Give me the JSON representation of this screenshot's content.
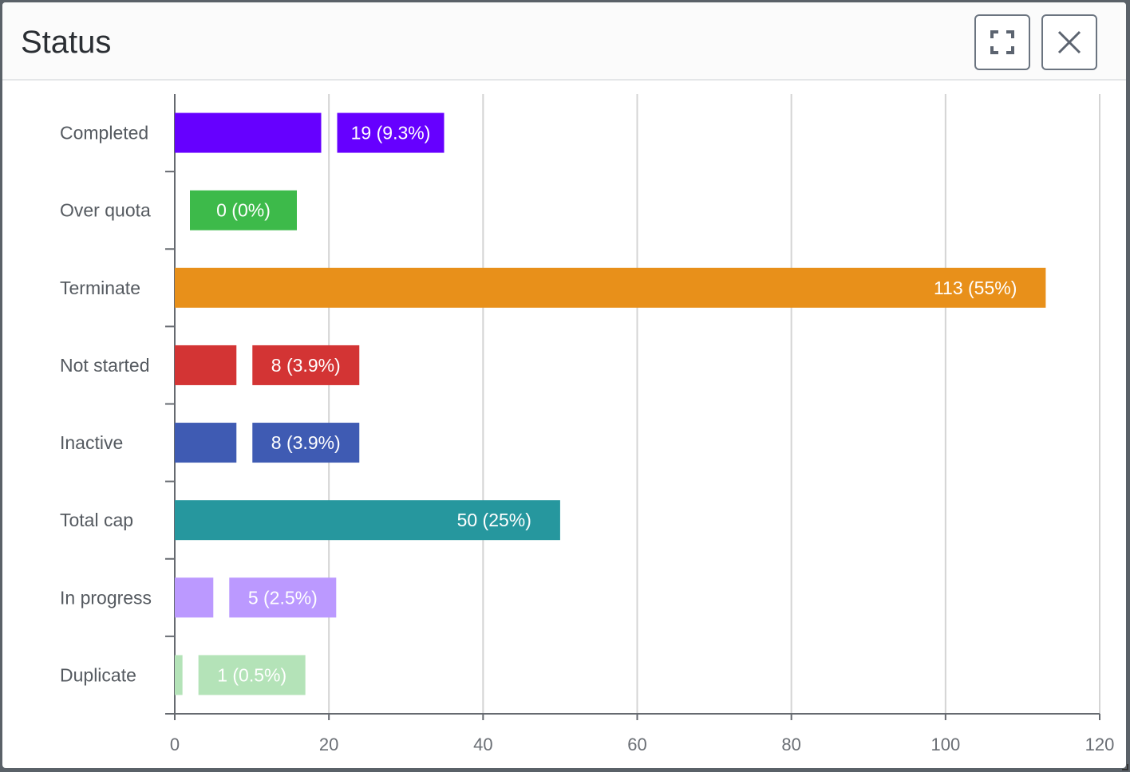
{
  "dialog": {
    "title": "Status",
    "expand_icon": "expand-icon",
    "close_icon": "close-icon"
  },
  "chart_data": {
    "type": "bar",
    "orientation": "horizontal",
    "title": "",
    "xlabel": "",
    "ylabel": "",
    "xlim": [
      0,
      120
    ],
    "xticks": [
      0,
      20,
      40,
      60,
      80,
      100,
      120
    ],
    "grid": "vertical",
    "categories": [
      "Completed",
      "Over quota",
      "Terminate",
      "Not started",
      "Inactive",
      "Total cap",
      "In progress",
      "Duplicate"
    ],
    "values": [
      19,
      0,
      113,
      8,
      8,
      50,
      5,
      1
    ],
    "data_labels": [
      "19 (9.3%)",
      "0 (0%)",
      "113 (55%)",
      "8 (3.9%)",
      "8 (3.9%)",
      "50 (25%)",
      "5 (2.5%)",
      "1 (0.5%)"
    ],
    "colors": [
      "#6600ff",
      "#3dba4a",
      "#e8901a",
      "#d33434",
      "#3f5bb3",
      "#26979e",
      "#bb99ff",
      "#b4e3b8"
    ]
  }
}
